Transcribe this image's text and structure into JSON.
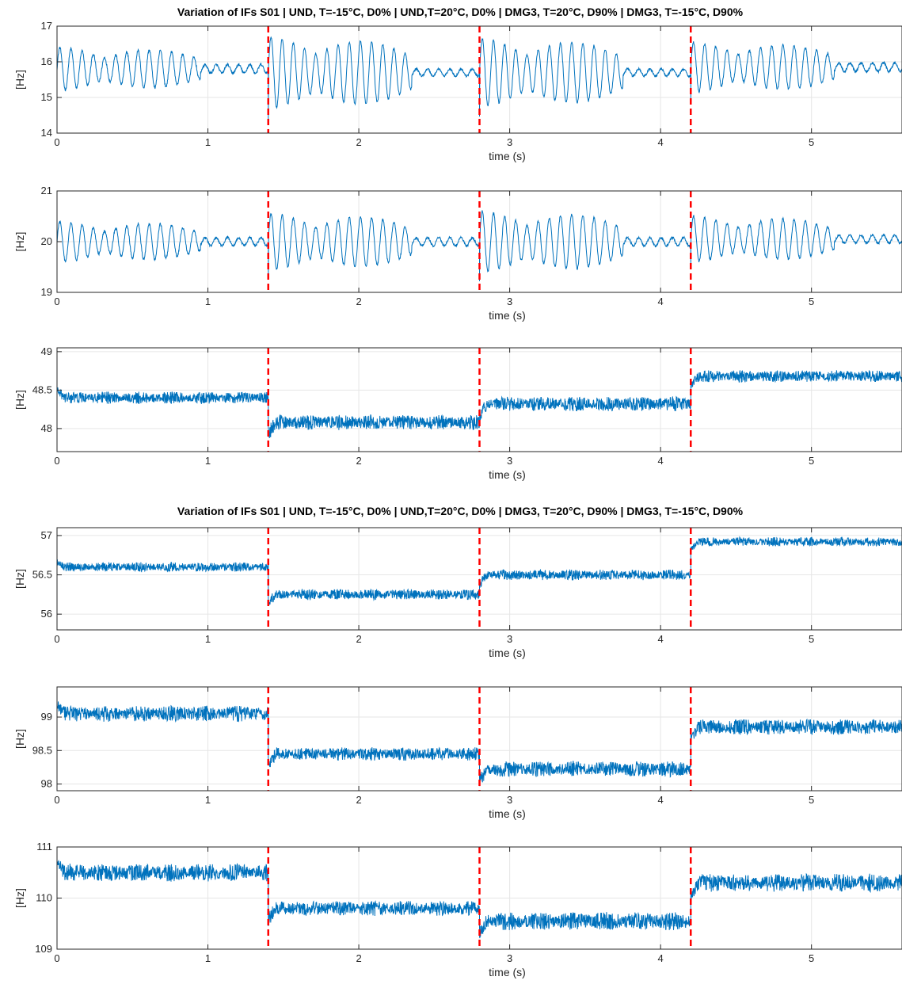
{
  "figure_titles": [
    "Variation of IFs S01 | UND, T=-15°C, D0% | UND,T=20°C, D0% | DMG3, T=20°C, D90% | DMG3, T=-15°C, D90%",
    "Variation of IFs S01 | UND, T=-15°C, D0% | UND,T=20°C, D0% | DMG3, T=20°C, D90% | DMG3, T=-15°C, D90%"
  ],
  "colors": {
    "signal": "#0072BD",
    "divider": "#ff0000",
    "grid": "#e6e6e6",
    "axes": "#262626"
  },
  "chart_data": [
    {
      "type": "line",
      "title": "Variation of IFs S01 | UND, T=-15°C, D0% | UND,T=20°C, D0% | DMG3, T=20°C, D90% | DMG3, T=-15°C, D90%",
      "xlabel": "time (s)",
      "ylabel": "[Hz]",
      "xlim": [
        0,
        5.6
      ],
      "ylim": [
        14,
        17
      ],
      "xticks": [
        0,
        1,
        2,
        3,
        4,
        5
      ],
      "yticks": [
        14,
        15,
        16,
        17
      ],
      "grid": true,
      "change_points_x": [
        1.4,
        2.8,
        4.2
      ],
      "segments": [
        {
          "x": [
            0,
            1.4
          ],
          "mean": 15.8,
          "oscillation_amplitude": 0.6,
          "settled_amplitude": 0.12
        },
        {
          "x": [
            1.4,
            2.8
          ],
          "mean": 15.7,
          "oscillation_amplitude": 1.0,
          "settled_amplitude": 0.1
        },
        {
          "x": [
            2.8,
            4.2
          ],
          "mean": 15.7,
          "oscillation_amplitude": 0.95,
          "settled_amplitude": 0.1
        },
        {
          "x": [
            4.2,
            5.6
          ],
          "mean": 15.85,
          "oscillation_amplitude": 0.7,
          "settled_amplitude": 0.12
        }
      ]
    },
    {
      "type": "line",
      "title": "",
      "xlabel": "time (s)",
      "ylabel": "[Hz]",
      "xlim": [
        0,
        5.6
      ],
      "ylim": [
        19,
        21
      ],
      "xticks": [
        0,
        1,
        2,
        3,
        4,
        5
      ],
      "yticks": [
        19,
        20,
        21
      ],
      "grid": true,
      "change_points_x": [
        1.4,
        2.8,
        4.2
      ],
      "segments": [
        {
          "x": [
            0,
            1.4
          ],
          "mean": 20.0,
          "oscillation_amplitude": 0.4,
          "settled_amplitude": 0.08
        },
        {
          "x": [
            1.4,
            2.8
          ],
          "mean": 20.0,
          "oscillation_amplitude": 0.55,
          "settled_amplitude": 0.08
        },
        {
          "x": [
            2.8,
            4.2
          ],
          "mean": 20.0,
          "oscillation_amplitude": 0.6,
          "settled_amplitude": 0.08
        },
        {
          "x": [
            4.2,
            5.6
          ],
          "mean": 20.05,
          "oscillation_amplitude": 0.45,
          "settled_amplitude": 0.08
        }
      ]
    },
    {
      "type": "line",
      "title": "",
      "xlabel": "time (s)",
      "ylabel": "[Hz]",
      "xlim": [
        0,
        5.6
      ],
      "ylim": [
        47.7,
        49.05
      ],
      "xticks": [
        0,
        1,
        2,
        3,
        4,
        5
      ],
      "yticks": [
        48,
        48.5,
        49
      ],
      "grid": true,
      "change_points_x": [
        1.4,
        2.8,
        4.2
      ],
      "segments": [
        {
          "x": [
            0,
            1.4
          ],
          "mean": 48.4,
          "noise_amplitude": 0.08
        },
        {
          "x": [
            1.4,
            2.8
          ],
          "mean": 48.08,
          "noise_amplitude": 0.1
        },
        {
          "x": [
            2.8,
            4.2
          ],
          "mean": 48.32,
          "noise_amplitude": 0.1
        },
        {
          "x": [
            4.2,
            5.6
          ],
          "mean": 48.68,
          "noise_amplitude": 0.08
        }
      ]
    },
    {
      "type": "line",
      "title": "Variation of IFs S01 | UND, T=-15°C, D0% | UND,T=20°C, D0% | DMG3, T=20°C, D90% | DMG3, T=-15°C, D90%",
      "xlabel": "time (s)",
      "ylabel": "[Hz]",
      "xlim": [
        0,
        5.6
      ],
      "ylim": [
        55.8,
        57.1
      ],
      "xticks": [
        0,
        1,
        2,
        3,
        4,
        5
      ],
      "yticks": [
        56,
        56.5,
        57
      ],
      "grid": true,
      "change_points_x": [
        1.4,
        2.8,
        4.2
      ],
      "segments": [
        {
          "x": [
            0,
            1.4
          ],
          "mean": 56.6,
          "noise_amplitude": 0.06
        },
        {
          "x": [
            1.4,
            2.8
          ],
          "mean": 56.25,
          "noise_amplitude": 0.07
        },
        {
          "x": [
            2.8,
            4.2
          ],
          "mean": 56.5,
          "noise_amplitude": 0.07
        },
        {
          "x": [
            4.2,
            5.6
          ],
          "mean": 56.92,
          "noise_amplitude": 0.06
        }
      ]
    },
    {
      "type": "line",
      "title": "",
      "xlabel": "time (s)",
      "ylabel": "[Hz]",
      "xlim": [
        0,
        5.6
      ],
      "ylim": [
        97.9,
        99.45
      ],
      "xticks": [
        0,
        1,
        2,
        3,
        4,
        5
      ],
      "yticks": [
        98,
        98.5,
        99
      ],
      "grid": true,
      "change_points_x": [
        1.4,
        2.8,
        4.2
      ],
      "segments": [
        {
          "x": [
            0,
            1.4
          ],
          "mean": 99.05,
          "noise_amplitude": 0.12
        },
        {
          "x": [
            1.4,
            2.8
          ],
          "mean": 98.45,
          "noise_amplitude": 0.1
        },
        {
          "x": [
            2.8,
            4.2
          ],
          "mean": 98.22,
          "noise_amplitude": 0.12
        },
        {
          "x": [
            4.2,
            5.6
          ],
          "mean": 98.85,
          "noise_amplitude": 0.12
        }
      ]
    },
    {
      "type": "line",
      "title": "",
      "xlabel": "time (s)",
      "ylabel": "[Hz]",
      "xlim": [
        0,
        5.6
      ],
      "ylim": [
        109,
        111
      ],
      "xticks": [
        0,
        1,
        2,
        3,
        4,
        5
      ],
      "yticks": [
        109,
        110,
        111
      ],
      "grid": true,
      "change_points_x": [
        1.4,
        2.8,
        4.2
      ],
      "segments": [
        {
          "x": [
            0,
            1.4
          ],
          "mean": 110.5,
          "noise_amplitude": 0.18
        },
        {
          "x": [
            1.4,
            2.8
          ],
          "mean": 109.8,
          "noise_amplitude": 0.15
        },
        {
          "x": [
            2.8,
            4.2
          ],
          "mean": 109.55,
          "noise_amplitude": 0.18
        },
        {
          "x": [
            4.2,
            5.6
          ],
          "mean": 110.3,
          "noise_amplitude": 0.18
        }
      ]
    }
  ]
}
